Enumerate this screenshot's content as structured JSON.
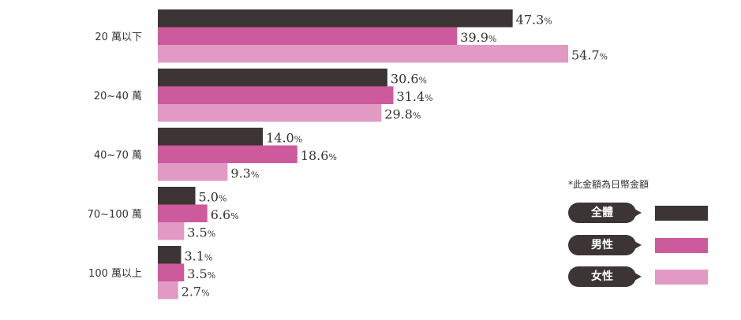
{
  "chart_data": {
    "type": "bar",
    "orientation": "horizontal",
    "categories": [
      "20 萬以下",
      "20~40 萬",
      "40~70 萬",
      "70~100 萬",
      "100 萬以上"
    ],
    "series": [
      {
        "name": "全體",
        "values": [
          47.3,
          30.6,
          14.0,
          5.0,
          3.1
        ],
        "color": "#3d3535"
      },
      {
        "name": "男性",
        "values": [
          39.9,
          31.4,
          18.6,
          6.6,
          3.5
        ],
        "color": "#cd5a9c"
      },
      {
        "name": "女性",
        "values": [
          54.7,
          29.8,
          9.3,
          3.5,
          2.7
        ],
        "color": "#e29ac4"
      }
    ],
    "value_suffix": "%",
    "xlim": [
      0,
      55
    ],
    "grid": false,
    "legend_position": "right"
  },
  "note": "*此金額為日幣金額"
}
